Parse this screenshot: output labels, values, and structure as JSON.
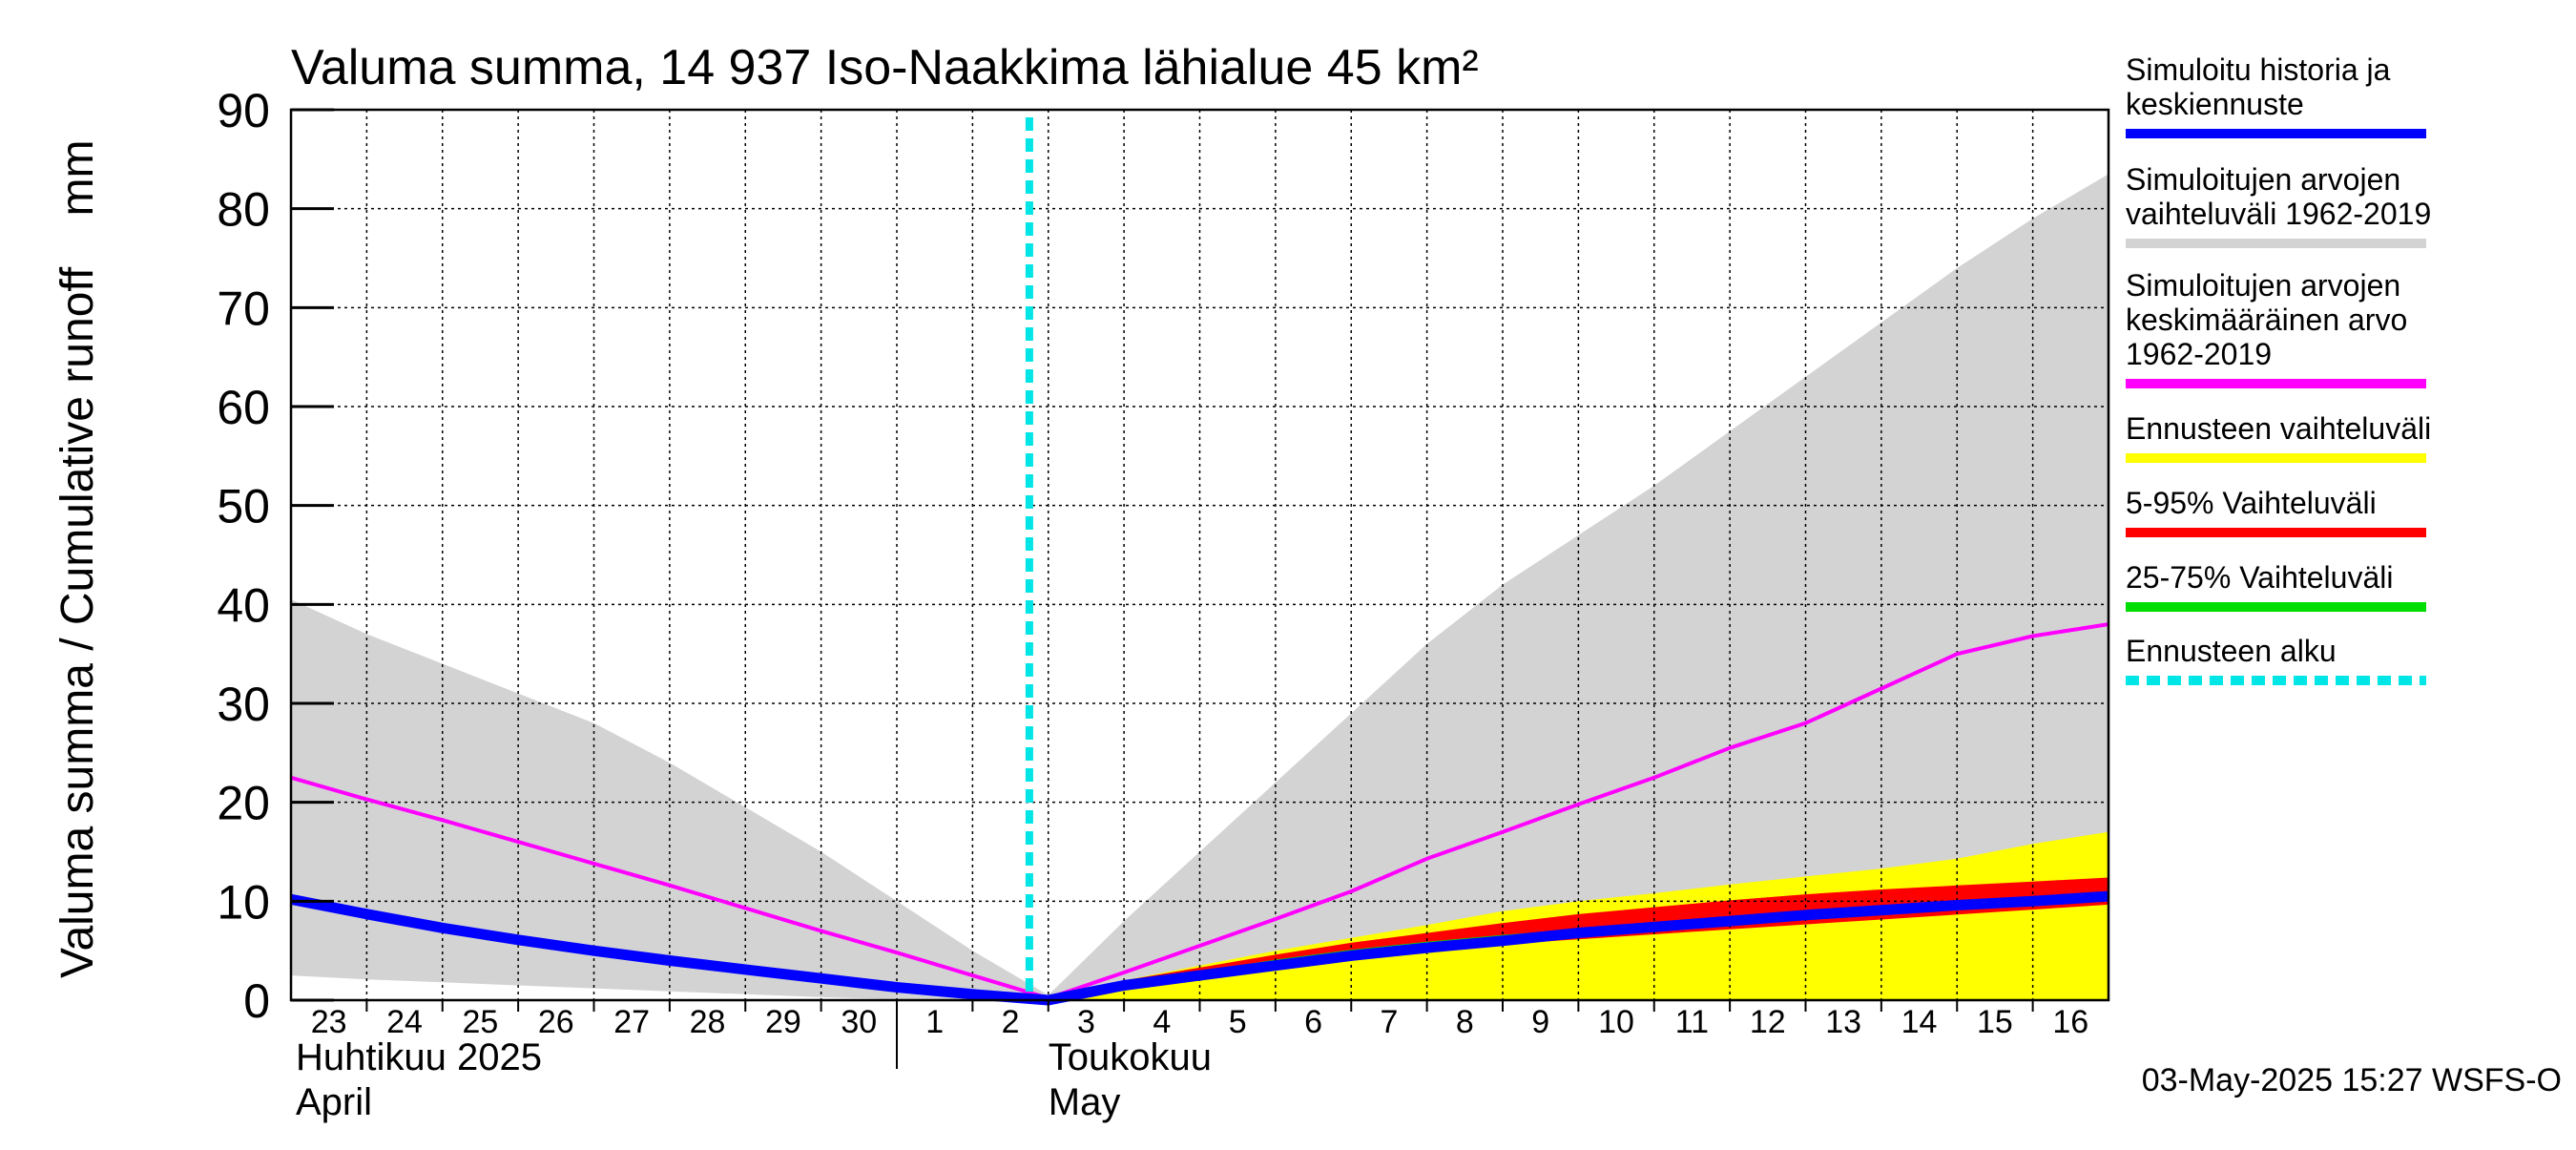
{
  "chart_data": {
    "type": "line",
    "title": "Valuma summa, 14 937 Iso-Naakkima lähialue 45 km²",
    "ylabel": "Valuma summa / Cumulative runoff    mm",
    "ylim": [
      0,
      90
    ],
    "y_ticks": [
      0,
      10,
      20,
      30,
      40,
      50,
      60,
      70,
      80,
      90
    ],
    "grid": true,
    "legend_position": "right",
    "x_start": "2025-04-23",
    "x_end": "2025-05-16",
    "x_tick_labels": [
      "23",
      "24",
      "25",
      "26",
      "27",
      "28",
      "29",
      "30",
      "1",
      "2",
      "3",
      "4",
      "5",
      "6",
      "7",
      "8",
      "9",
      "10",
      "11",
      "12",
      "13",
      "14",
      "15",
      "16"
    ],
    "month_labels": [
      {
        "fi": "Huhtikuu  2025",
        "en": "April",
        "start": "2025-04-23"
      },
      {
        "fi": "Toukokuu",
        "en": "May",
        "start": "2025-05-03"
      }
    ],
    "month_boundary": "2025-05-01",
    "forecast_start": "2025-05-02T18:00",
    "x": [
      "2025-04-23",
      "2025-04-24",
      "2025-04-25",
      "2025-04-26",
      "2025-04-27",
      "2025-04-28",
      "2025-04-29",
      "2025-04-30",
      "2025-05-01",
      "2025-05-02",
      "2025-05-03",
      "2025-05-04",
      "2025-05-05",
      "2025-05-06",
      "2025-05-07",
      "2025-05-08",
      "2025-05-09",
      "2025-05-10",
      "2025-05-11",
      "2025-05-12",
      "2025-05-13",
      "2025-05-14",
      "2025-05-15",
      "2025-05-16",
      "2025-05-17"
    ],
    "series": [
      {
        "name": "Simuloitujen arvojen vaihteluväli 1962-2019",
        "kind": "band",
        "color": "#d3d3d3",
        "upper": [
          40.5,
          37,
          34,
          31,
          28,
          24,
          19.5,
          15,
          10,
          5,
          0.5,
          8,
          15,
          22,
          29,
          36,
          42,
          47,
          52,
          57.5,
          63,
          68.5,
          74,
          79,
          83.5
        ],
        "lower": [
          2.5,
          2.1,
          1.8,
          1.5,
          1.2,
          0.9,
          0.6,
          0.3,
          0.1,
          0,
          0,
          0,
          0,
          0,
          0.2,
          0.4,
          0.7,
          1,
          1.5,
          2,
          3,
          5,
          7.5,
          10,
          12
        ]
      },
      {
        "name": "Ennusteen vaihteluväli",
        "kind": "band",
        "color": "#ffff00",
        "upper": [
          null,
          null,
          null,
          null,
          null,
          null,
          null,
          null,
          null,
          null,
          0,
          2,
          3.5,
          5,
          6.3,
          7.6,
          9,
          10,
          10.8,
          11.7,
          12.5,
          13.3,
          14.3,
          15.8,
          17
        ]
      },
      {
        "name": "5-95% Vaihteluväli",
        "kind": "band",
        "color": "#ff0000",
        "upper": [
          null,
          null,
          null,
          null,
          null,
          null,
          null,
          null,
          null,
          null,
          0,
          1.8,
          3.1,
          4.4,
          5.6,
          6.6,
          7.6,
          8.5,
          9.2,
          9.9,
          10.5,
          11,
          11.4,
          11.8,
          12.2
        ],
        "lower": [
          null,
          null,
          null,
          null,
          null,
          null,
          null,
          null,
          null,
          null,
          0,
          1.5,
          2.6,
          3.6,
          4.5,
          5.2,
          5.8,
          6.3,
          6.8,
          7.3,
          7.8,
          8.3,
          8.8,
          9.3,
          9.8
        ]
      },
      {
        "name": "25-75% Vaihteluväli",
        "kind": "band",
        "color": "#00dd00",
        "upper": [
          null,
          null,
          null,
          null,
          null,
          null,
          null,
          null,
          null,
          null,
          0,
          1.7,
          2.9,
          4.1,
          5.1,
          5.9,
          6.6,
          7.2,
          7.8,
          8.4,
          9,
          9.5,
          10,
          10.5,
          10.9
        ],
        "lower": [
          null,
          null,
          null,
          null,
          null,
          null,
          null,
          null,
          null,
          null,
          0,
          1.6,
          2.7,
          3.8,
          4.8,
          5.5,
          6.2,
          6.8,
          7.4,
          8,
          8.6,
          9.1,
          9.5,
          9.9,
          10.3
        ]
      },
      {
        "name": "Simuloitujen arvojen keskimääräinen arvo\n   1962-2019",
        "kind": "line",
        "color": "#ff00ff",
        "values": [
          22.5,
          20.3,
          18.2,
          16,
          13.8,
          11.6,
          9.3,
          7,
          4.8,
          2.5,
          0.2,
          2.8,
          5.5,
          8.2,
          11,
          14.3,
          17,
          19.8,
          22.5,
          25.5,
          28,
          31.5,
          35,
          36.8,
          38
        ]
      },
      {
        "name": "Simuloitu historia ja keskiennuste",
        "kind": "line",
        "color": "#0000ff",
        "values": [
          10.2,
          8.7,
          7.3,
          6.1,
          5,
          4,
          3.1,
          2.2,
          1.3,
          0.6,
          0,
          1.5,
          2.5,
          3.5,
          4.5,
          5.3,
          6,
          6.8,
          7.4,
          8,
          8.6,
          9.1,
          9.6,
          10,
          10.5
        ]
      }
    ],
    "legend": [
      {
        "label": "Simuloitu historia ja\nkeskiennuste",
        "color": "#0000ff",
        "style": "solid"
      },
      {
        "label": "Simuloitujen arvojen\nvaihteluväli 1962-2019",
        "color": "#d3d3d3",
        "style": "solid"
      },
      {
        "label": "Simuloitujen arvojen\nkeskimääräinen arvo\n   1962-2019",
        "color": "#ff00ff",
        "style": "solid"
      },
      {
        "label": "Ennusteen vaihteluväli",
        "color": "#ffff00",
        "style": "solid"
      },
      {
        "label": "5-95% Vaihteluväli",
        "color": "#ff0000",
        "style": "solid"
      },
      {
        "label": "25-75% Vaihteluväli",
        "color": "#00dd00",
        "style": "solid"
      },
      {
        "label": "Ennusteen alku",
        "color": "#00e5e5",
        "style": "dashed"
      }
    ],
    "footer": "03-May-2025 15:27 WSFS-O"
  }
}
